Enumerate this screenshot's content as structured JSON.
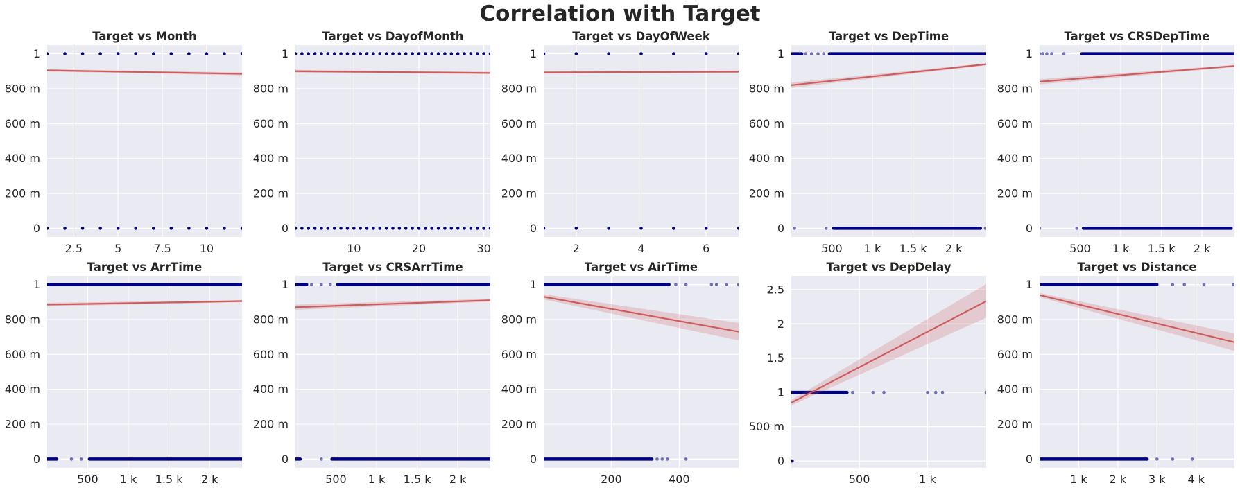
{
  "figure": {
    "title": "Correlation with Target"
  },
  "chart_data": [
    {
      "type": "scatter",
      "title": "Target vs Month",
      "xlabel": "",
      "ylabel": "",
      "xlim": [
        1,
        12
      ],
      "ylim": [
        -0.05,
        1.05
      ],
      "grid": true,
      "xticks": [
        2.5,
        5,
        7.5,
        10
      ],
      "xtick_labels": [
        "2.5",
        "5",
        "7.5",
        "10"
      ],
      "yticks": [
        0,
        0.2,
        0.4,
        0.6,
        0.8,
        1
      ],
      "ytick_labels": [
        "0",
        "200 m",
        "400 m",
        "600 m",
        "800 m",
        "1"
      ],
      "points_y1": [
        1,
        2,
        3,
        4,
        5,
        6,
        7,
        8,
        9,
        10,
        11,
        12
      ],
      "points_y0": [
        1,
        2,
        3,
        4,
        5,
        6,
        7,
        8,
        9,
        10,
        11,
        12
      ],
      "fit_line": {
        "x": [
          1,
          12
        ],
        "y": [
          0.905,
          0.885
        ]
      },
      "ci_band": {
        "upper": [
          0.912,
          0.893
        ],
        "lower": [
          0.898,
          0.877
        ]
      }
    },
    {
      "type": "scatter",
      "title": "Target vs DayofMonth",
      "xlabel": "",
      "ylabel": "",
      "xlim": [
        1,
        31
      ],
      "ylim": [
        -0.05,
        1.05
      ],
      "grid": true,
      "xticks": [
        10,
        20,
        30
      ],
      "xtick_labels": [
        "10",
        "20",
        "30"
      ],
      "yticks": [
        0,
        0.2,
        0.4,
        0.6,
        0.8,
        1
      ],
      "ytick_labels": [
        "0",
        "200 m",
        "400 m",
        "600 m",
        "800 m",
        "1"
      ],
      "points_y1": [
        1,
        2,
        3,
        4,
        5,
        6,
        7,
        8,
        9,
        10,
        11,
        12,
        13,
        14,
        15,
        16,
        17,
        18,
        19,
        20,
        21,
        22,
        23,
        24,
        25,
        26,
        27,
        28,
        29,
        30,
        31
      ],
      "points_y0": [
        1,
        2,
        3,
        4,
        5,
        6,
        7,
        8,
        9,
        10,
        11,
        12,
        13,
        14,
        15,
        16,
        17,
        18,
        19,
        20,
        21,
        22,
        23,
        24,
        25,
        26,
        27,
        28,
        29,
        30,
        31
      ],
      "fit_line": {
        "x": [
          1,
          31
        ],
        "y": [
          0.9,
          0.89
        ]
      },
      "ci_band": {
        "upper": [
          0.908,
          0.897
        ],
        "lower": [
          0.892,
          0.883
        ]
      }
    },
    {
      "type": "scatter",
      "title": "Target vs DayOfWeek",
      "xlabel": "",
      "ylabel": "",
      "xlim": [
        1,
        7
      ],
      "ylim": [
        -0.05,
        1.05
      ],
      "grid": true,
      "xticks": [
        2,
        4,
        6
      ],
      "xtick_labels": [
        "2",
        "4",
        "6"
      ],
      "yticks": [
        0,
        0.2,
        0.4,
        0.6,
        0.8,
        1
      ],
      "ytick_labels": [
        "0",
        "200 m",
        "400 m",
        "600 m",
        "800 m",
        "1"
      ],
      "points_y1": [
        1,
        2,
        3,
        4,
        5,
        6,
        7
      ],
      "points_y0": [
        1,
        2,
        3,
        4,
        5,
        6,
        7
      ],
      "fit_line": {
        "x": [
          1,
          7
        ],
        "y": [
          0.893,
          0.897
        ]
      },
      "ci_band": {
        "upper": [
          0.9,
          0.904
        ],
        "lower": [
          0.886,
          0.89
        ]
      }
    },
    {
      "type": "scatter",
      "title": "Target vs DepTime",
      "xlabel": "",
      "ylabel": "",
      "xlim": [
        1,
        2400
      ],
      "ylim": [
        -0.05,
        1.05
      ],
      "grid": true,
      "xticks": [
        500,
        1000,
        1500,
        2000
      ],
      "xtick_labels": [
        "500",
        "1 k",
        "1.5 k",
        "2 k"
      ],
      "yticks": [
        0,
        0.2,
        0.4,
        0.6,
        0.8,
        1
      ],
      "ytick_labels": [
        "0",
        "200 m",
        "400 m",
        "600 m",
        "800 m",
        "1"
      ],
      "y1_ranges": [
        [
          1,
          130
        ],
        [
          470,
          2400
        ]
      ],
      "y1_points": [
        180,
        250,
        330,
        400
      ],
      "y0_ranges": [
        [
          520,
          2330
        ]
      ],
      "y0_points": [
        40,
        430,
        2390
      ],
      "fit_line": {
        "x": [
          1,
          2400
        ],
        "y": [
          0.82,
          0.94
        ]
      },
      "ci_band": {
        "upper": [
          0.835,
          0.946
        ],
        "lower": [
          0.805,
          0.934
        ]
      }
    },
    {
      "type": "scatter",
      "title": "Target vs CRSDepTime",
      "xlabel": "",
      "ylabel": "",
      "xlim": [
        1,
        2400
      ],
      "ylim": [
        -0.05,
        1.05
      ],
      "grid": true,
      "xticks": [
        500,
        1000,
        1500,
        2000
      ],
      "xtick_labels": [
        "500",
        "1 k",
        "1.5 k",
        "2 k"
      ],
      "yticks": [
        0,
        0.2,
        0.4,
        0.6,
        0.8,
        1
      ],
      "ytick_labels": [
        "0",
        "200 m",
        "400 m",
        "600 m",
        "800 m",
        "1"
      ],
      "y1_ranges": [
        [
          520,
          2400
        ]
      ],
      "y1_points": [
        1,
        40,
        90,
        150,
        300
      ],
      "y0_ranges": [
        [
          540,
          2360
        ]
      ],
      "y0_points": [
        1,
        460
      ],
      "fit_line": {
        "x": [
          1,
          2400
        ],
        "y": [
          0.84,
          0.93
        ]
      },
      "ci_band": {
        "upper": [
          0.855,
          0.936
        ],
        "lower": [
          0.825,
          0.924
        ]
      }
    },
    {
      "type": "scatter",
      "title": "Target vs ArrTime",
      "xlabel": "",
      "ylabel": "",
      "xlim": [
        1,
        2400
      ],
      "ylim": [
        -0.05,
        1.05
      ],
      "grid": true,
      "xticks": [
        500,
        1000,
        1500,
        2000
      ],
      "xtick_labels": [
        "500",
        "1 k",
        "1.5 k",
        "2 k"
      ],
      "yticks": [
        0,
        0.2,
        0.4,
        0.6,
        0.8,
        1
      ],
      "ytick_labels": [
        "0",
        "200 m",
        "400 m",
        "600 m",
        "800 m",
        "1"
      ],
      "y1_ranges": [
        [
          1,
          2400
        ]
      ],
      "y1_points": [],
      "y0_ranges": [
        [
          1,
          120
        ],
        [
          520,
          2400
        ]
      ],
      "y0_points": [
        300,
        420
      ],
      "fit_line": {
        "x": [
          1,
          2400
        ],
        "y": [
          0.885,
          0.905
        ]
      },
      "ci_band": {
        "upper": [
          0.895,
          0.911
        ],
        "lower": [
          0.875,
          0.899
        ]
      }
    },
    {
      "type": "scatter",
      "title": "Target vs CRSArrTime",
      "xlabel": "",
      "ylabel": "",
      "xlim": [
        1,
        2400
      ],
      "ylim": [
        -0.05,
        1.05
      ],
      "grid": true,
      "xticks": [
        500,
        1000,
        1500,
        2000
      ],
      "xtick_labels": [
        "500",
        "1 k",
        "1.5 k",
        "2 k"
      ],
      "yticks": [
        0,
        0.2,
        0.4,
        0.6,
        0.8,
        1
      ],
      "ytick_labels": [
        "0",
        "200 m",
        "400 m",
        "600 m",
        "800 m",
        "1"
      ],
      "y1_ranges": [
        [
          1,
          140
        ],
        [
          520,
          2400
        ]
      ],
      "y1_points": [
        200,
        320,
        430
      ],
      "y0_ranges": [
        [
          1,
          60
        ],
        [
          450,
          2400
        ]
      ],
      "y0_points": [
        320
      ],
      "fit_line": {
        "x": [
          1,
          2400
        ],
        "y": [
          0.87,
          0.91
        ]
      },
      "ci_band": {
        "upper": [
          0.885,
          0.918
        ],
        "lower": [
          0.855,
          0.902
        ]
      }
    },
    {
      "type": "scatter",
      "title": "Target vs AirTime",
      "xlabel": "",
      "ylabel": "",
      "xlim": [
        1,
        575
      ],
      "ylim": [
        -0.05,
        1.05
      ],
      "grid": true,
      "xticks": [
        200,
        400
      ],
      "xtick_labels": [
        "200",
        "400"
      ],
      "yticks": [
        0,
        0.2,
        0.4,
        0.6,
        0.8,
        1
      ],
      "ytick_labels": [
        "0",
        "200 m",
        "400 m",
        "600 m",
        "800 m",
        "1"
      ],
      "y1_ranges": [
        [
          1,
          370
        ]
      ],
      "y1_points": [
        390,
        420,
        495,
        510,
        540,
        575
      ],
      "y0_ranges": [
        [
          1,
          320
        ]
      ],
      "y0_points": [
        335,
        350,
        365,
        420
      ],
      "fit_line": {
        "x": [
          1,
          575
        ],
        "y": [
          0.93,
          0.73
        ]
      },
      "ci_band": {
        "upper": [
          0.945,
          0.78
        ],
        "lower": [
          0.915,
          0.68
        ]
      }
    },
    {
      "type": "scatter",
      "title": "Target vs DepDelay",
      "xlabel": "",
      "ylabel": "",
      "xlim": [
        1,
        1430
      ],
      "ylim": [
        -0.1,
        2.7
      ],
      "grid": true,
      "xticks": [
        500,
        1000
      ],
      "xtick_labels": [
        "500",
        "1 k"
      ],
      "yticks": [
        0,
        0.5,
        1,
        1.5,
        2,
        2.5
      ],
      "ytick_labels": [
        "0",
        "500 m",
        "1",
        "1.5",
        "2",
        "2.5"
      ],
      "y1_ranges": [
        [
          1,
          410
        ]
      ],
      "y1_points": [
        450,
        600,
        680,
        1000,
        1060,
        1110,
        1430
      ],
      "y0_ranges": [
        [
          1,
          8
        ]
      ],
      "y0_points": [],
      "fit_line": {
        "x": [
          1,
          1430
        ],
        "y": [
          0.85,
          2.33
        ]
      },
      "ci_band": {
        "upper": [
          0.89,
          2.58
        ],
        "lower": [
          0.81,
          2.09
        ]
      }
    },
    {
      "type": "scatter",
      "title": "Target vs Distance",
      "xlabel": "",
      "ylabel": "",
      "xlim": [
        1,
        4980
      ],
      "ylim": [
        -0.05,
        1.05
      ],
      "grid": true,
      "xticks": [
        1000,
        2000,
        3000,
        4000
      ],
      "xtick_labels": [
        "1 k",
        "2 k",
        "3 k",
        "4 k"
      ],
      "yticks": [
        0,
        0.2,
        0.4,
        0.6,
        0.8,
        1
      ],
      "ytick_labels": [
        "0",
        "200 m",
        "400 m",
        "600 m",
        "800 m",
        "1"
      ],
      "y1_ranges": [
        [
          1,
          3000
        ]
      ],
      "y1_points": [
        3400,
        3700,
        4200,
        4950
      ],
      "y0_ranges": [
        [
          1,
          2750
        ]
      ],
      "y0_points": [
        3000,
        3400,
        3900
      ],
      "fit_line": {
        "x": [
          1,
          4980
        ],
        "y": [
          0.94,
          0.67
        ]
      },
      "ci_band": {
        "upper": [
          0.952,
          0.72
        ],
        "lower": [
          0.928,
          0.62
        ]
      }
    }
  ]
}
